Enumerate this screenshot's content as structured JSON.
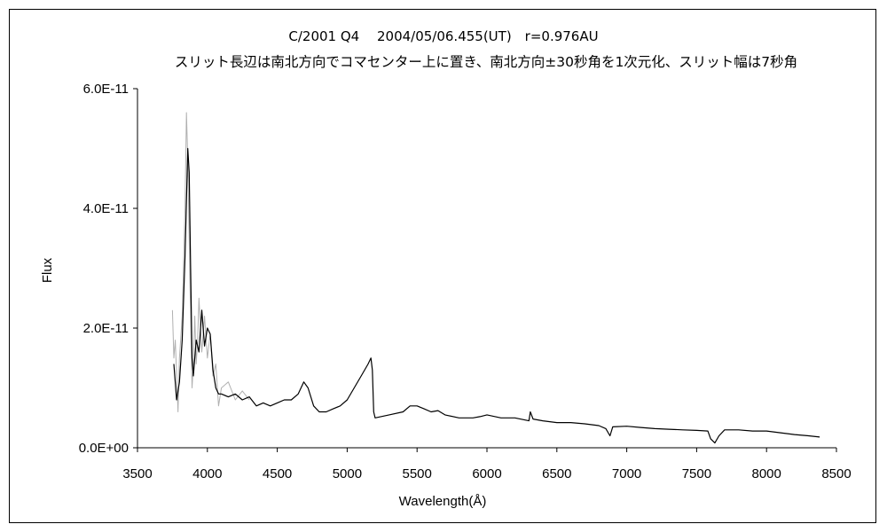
{
  "chart_data": {
    "type": "line",
    "title": "C/2001 Q4　 2004/05/06.455(UT)　r=0.976AU",
    "subtitle": "スリット長辺は南北方向でコマセンター上に置き、南北方向±30秒角を1次元化、スリット幅は7秒角",
    "xlabel": "Wavelength(Å)",
    "ylabel": "Flux",
    "xlim": [
      3500,
      8500
    ],
    "ylim": [
      0,
      6e-11
    ],
    "xticks": [
      3500,
      4000,
      4500,
      5000,
      5500,
      6000,
      6500,
      7000,
      7500,
      8000,
      8500
    ],
    "xtick_labels": [
      "3500",
      "4000",
      "4500",
      "5000",
      "5500",
      "6000",
      "6500",
      "7000",
      "7500",
      "8000",
      "8500"
    ],
    "yticks": [
      0,
      2e-11,
      4e-11,
      6e-11
    ],
    "ytick_labels": [
      "0.0E+00",
      "2.0E-11",
      "4.0E-11",
      "6.0E-11"
    ],
    "grid": false,
    "legend": "none",
    "series": [
      {
        "color": "#000000",
        "x": [
          3760,
          3780,
          3800,
          3820,
          3840,
          3860,
          3870,
          3880,
          3890,
          3900,
          3920,
          3940,
          3960,
          3980,
          4000,
          4020,
          4040,
          4060,
          4080,
          4100,
          4150,
          4200,
          4250,
          4300,
          4350,
          4400,
          4450,
          4500,
          4550,
          4600,
          4650,
          4690,
          4720,
          4760,
          4800,
          4850,
          4900,
          4950,
          5000,
          5050,
          5100,
          5150,
          5170,
          5180,
          5190,
          5200,
          5300,
          5400,
          5450,
          5500,
          5550,
          5600,
          5650,
          5700,
          5800,
          5900,
          5950,
          6000,
          6100,
          6200,
          6300,
          6310,
          6330,
          6400,
          6500,
          6600,
          6700,
          6800,
          6850,
          6880,
          6900,
          7000,
          7100,
          7200,
          7300,
          7400,
          7500,
          7580,
          7600,
          7630,
          7660,
          7700,
          7800,
          7900,
          8000,
          8100,
          8200,
          8300,
          8380
        ],
        "y": [
          1.4e-11,
          8e-12,
          1.1e-11,
          1.8e-11,
          3.2e-11,
          5e-11,
          4.6e-11,
          3e-11,
          1.5e-11,
          1.2e-11,
          1.8e-11,
          1.6e-11,
          2.3e-11,
          1.7e-11,
          2e-11,
          1.9e-11,
          1.3e-11,
          1e-11,
          9e-12,
          9e-12,
          8.5e-12,
          9e-12,
          8e-12,
          8.5e-12,
          7e-12,
          7.5e-12,
          7e-12,
          7.5e-12,
          8e-12,
          8e-12,
          9e-12,
          1.1e-11,
          1e-11,
          7e-12,
          6e-12,
          6e-12,
          6.5e-12,
          7e-12,
          8e-12,
          1e-11,
          1.2e-11,
          1.4e-11,
          1.5e-11,
          1.3e-11,
          6e-12,
          5e-12,
          5.5e-12,
          6e-12,
          7e-12,
          7e-12,
          6.5e-12,
          6e-12,
          6.2e-12,
          5.5e-12,
          5e-12,
          5e-12,
          5.2e-12,
          5.5e-12,
          5e-12,
          5e-12,
          4.5e-12,
          6e-12,
          4.8e-12,
          4.5e-12,
          4.2e-12,
          4.2e-12,
          4e-12,
          3.7e-12,
          3.2e-12,
          2e-12,
          3.5e-12,
          3.6e-12,
          3.4e-12,
          3.2e-12,
          3.1e-12,
          3e-12,
          2.9e-12,
          2.8e-12,
          1.5e-12,
          8e-13,
          2e-12,
          3e-12,
          3e-12,
          2.8e-12,
          2.8e-12,
          2.5e-12,
          2.2e-12,
          2e-12,
          1.8e-12
        ]
      },
      {
        "color": "#b0b0b0",
        "x": [
          3750,
          3760,
          3770,
          3790,
          3800,
          3820,
          3840,
          3850,
          3860,
          3870,
          3880,
          3890,
          3900,
          3910,
          3920,
          3930,
          3940,
          3960,
          3980,
          4000,
          4020,
          4040,
          4060,
          4080,
          4100,
          4150,
          4200,
          4250,
          4300
        ],
        "y": [
          2.3e-11,
          1.5e-11,
          1.8e-11,
          6e-12,
          1.5e-11,
          2.2e-11,
          4e-11,
          5.6e-11,
          4.8e-11,
          3.5e-11,
          2.2e-11,
          1e-11,
          1.4e-11,
          2.2e-11,
          1.4e-11,
          1.8e-11,
          2.5e-11,
          1.6e-11,
          2.2e-11,
          1.5e-11,
          1.9e-11,
          1.2e-11,
          1.4e-11,
          7e-12,
          1e-11,
          1.1e-11,
          8e-12,
          9.5e-12,
          8e-12
        ]
      }
    ]
  }
}
